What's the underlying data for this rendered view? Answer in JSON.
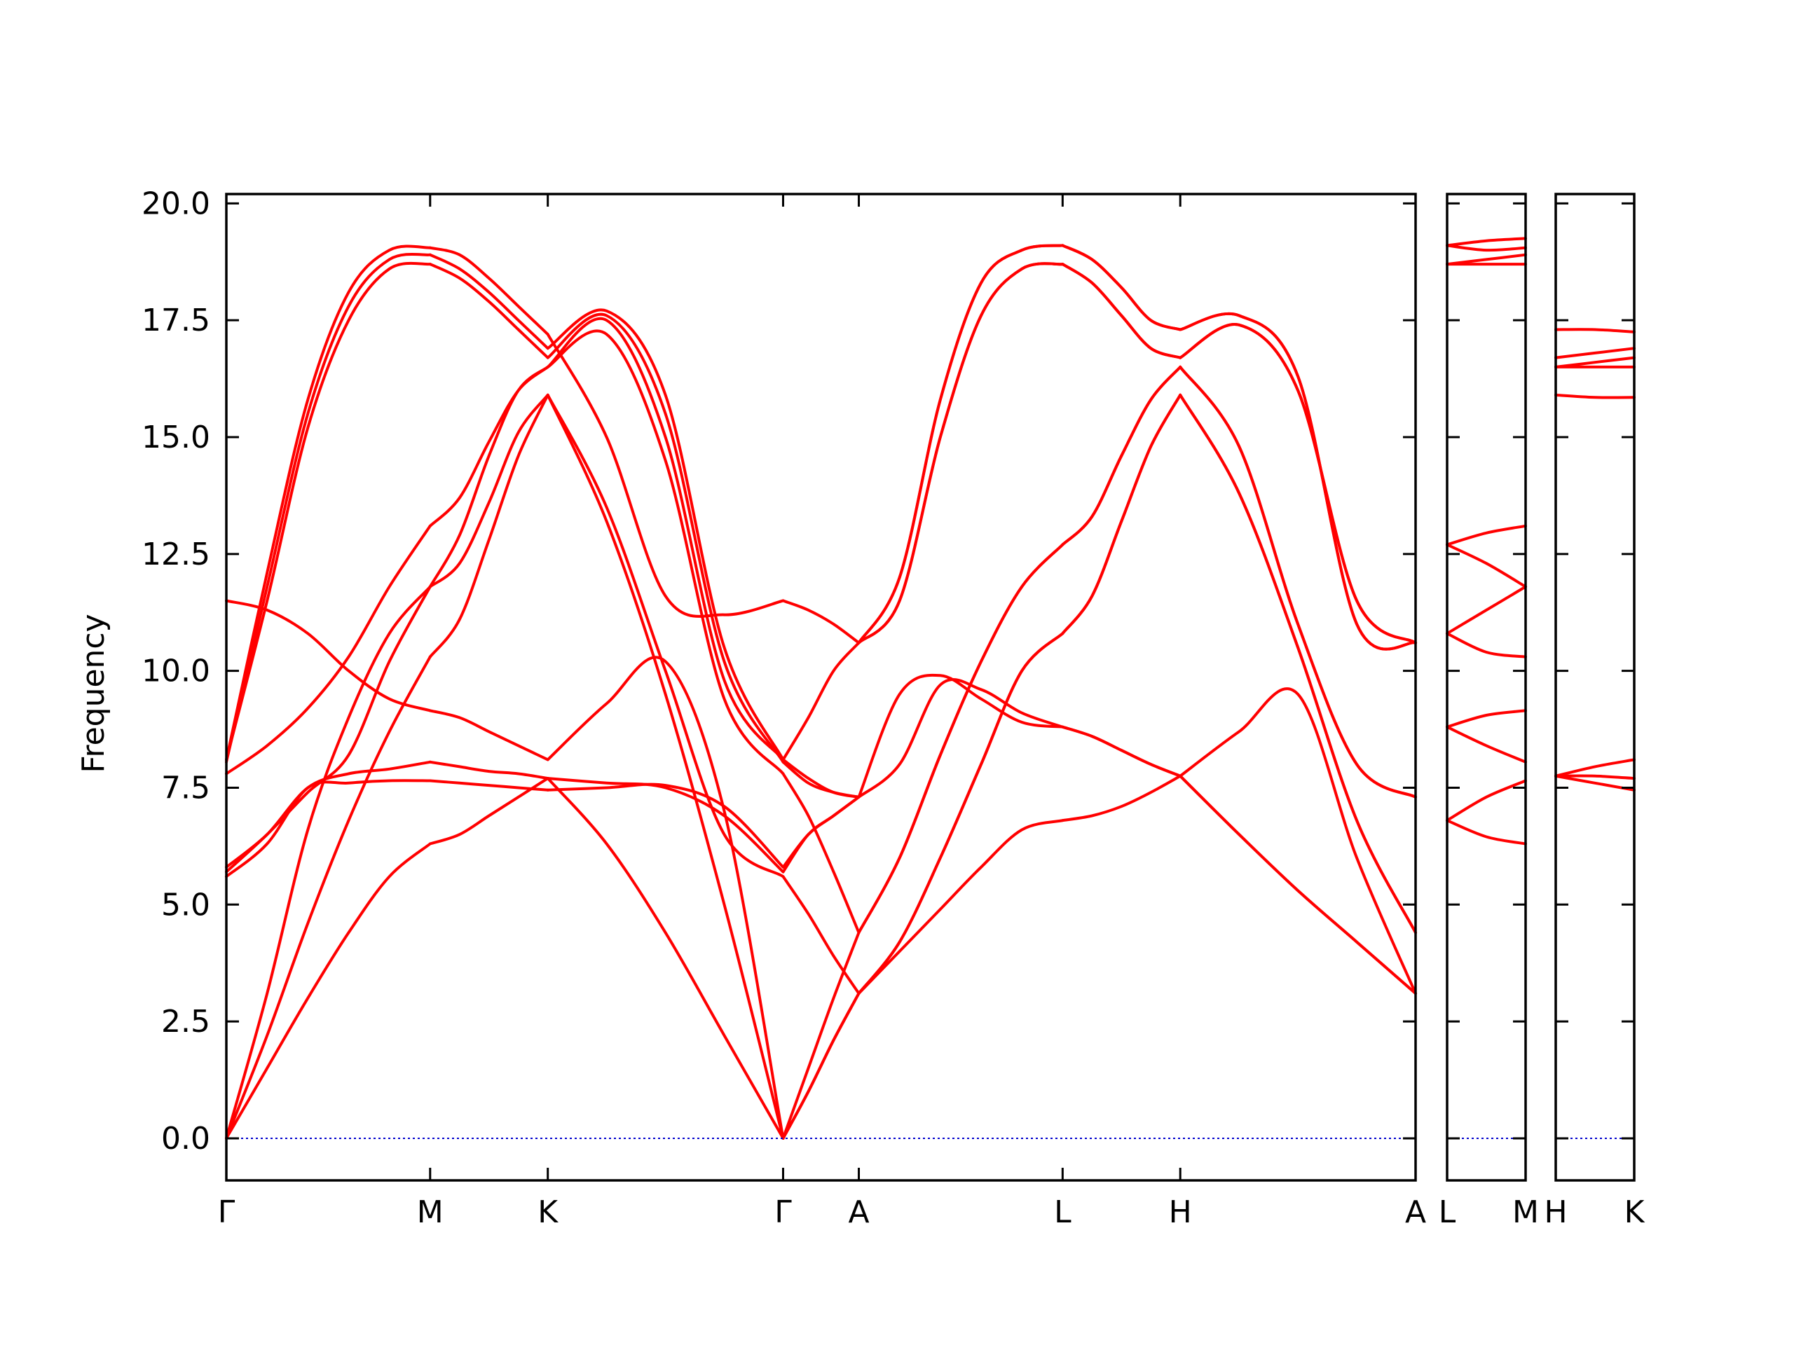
{
  "chart_data": {
    "type": "line",
    "ylabel": "Frequency",
    "ylim": [
      -0.9,
      20.2
    ],
    "yticks": [
      "0.0",
      "2.5",
      "5.0",
      "7.5",
      "10.0",
      "12.5",
      "15.0",
      "17.5",
      "20.0"
    ],
    "ytick_values": [
      0,
      2.5,
      5,
      7.5,
      10,
      12.5,
      15,
      17.5,
      20
    ],
    "grid": false,
    "colors": {
      "bands": "#ff0000",
      "zero_line": "#0000cc",
      "frame": "#000000"
    },
    "high_symmetry_points": [
      {
        "label": "Γ",
        "x": 0.0
      },
      {
        "label": "M",
        "x": 0.627
      },
      {
        "label": "K",
        "x": 0.989
      },
      {
        "label": "Γ",
        "x": 1.713
      },
      {
        "label": "A",
        "x": 1.946
      },
      {
        "label": "L",
        "x": 2.573
      },
      {
        "label": "H",
        "x": 2.935
      },
      {
        "label": "A",
        "x": 3.659
      },
      {
        "label": "L",
        "x": 3.776
      },
      {
        "label": "M",
        "x": 4.009
      },
      {
        "label": "H",
        "x": 4.126
      },
      {
        "label": "K",
        "x": 4.359
      }
    ],
    "panels": [
      {
        "name": "Γ-M-K-Γ-A-L-H-A",
        "x_range": [
          0.0,
          3.659
        ],
        "segments": [
          {
            "from": "Γ",
            "to": "M",
            "x": [
              0.0,
              0.627
            ],
            "bands": [
              [
                0.0,
                1.5,
                3.0,
                4.4,
                5.6,
                6.3
              ],
              [
                0.0,
                2.2,
                4.6,
                6.8,
                8.7,
                10.3
              ],
              [
                0.0,
                3.1,
                6.6,
                9.0,
                10.8,
                11.8
              ],
              [
                5.6,
                6.3,
                7.5,
                7.6,
                7.65,
                7.65
              ],
              [
                5.7,
                6.5,
                7.4,
                8.2,
                10.2,
                11.8
              ],
              [
                5.8,
                6.5,
                7.5,
                7.8,
                7.9,
                8.05
              ],
              [
                7.8,
                8.4,
                9.2,
                10.3,
                11.8,
                13.1
              ],
              [
                8.1,
                11.5,
                15.2,
                17.5,
                18.6,
                18.7
              ],
              [
                8.05,
                11.8,
                15.5,
                17.8,
                18.8,
                18.9
              ],
              [
                8.1,
                12.1,
                15.8,
                18.1,
                19.0,
                19.05
              ],
              [
                11.5,
                11.3,
                10.8,
                10.0,
                9.4,
                9.15
              ]
            ]
          },
          {
            "from": "M",
            "to": "K",
            "x": [
              0.627,
              0.989
            ],
            "bands": [
              [
                6.3,
                6.5,
                6.9,
                7.3,
                7.7
              ],
              [
                10.3,
                11.1,
                12.8,
                14.6,
                15.9
              ],
              [
                11.8,
                12.3,
                13.6,
                15.1,
                15.9
              ],
              [
                7.65,
                7.6,
                7.55,
                7.5,
                7.45
              ],
              [
                11.8,
                12.9,
                14.6,
                16.0,
                16.5
              ],
              [
                8.05,
                7.95,
                7.85,
                7.8,
                7.7
              ],
              [
                13.1,
                13.7,
                14.9,
                16.0,
                16.5
              ],
              [
                18.7,
                18.4,
                17.9,
                17.3,
                16.7
              ],
              [
                18.9,
                18.6,
                18.1,
                17.5,
                16.9
              ],
              [
                19.05,
                18.9,
                18.4,
                17.8,
                17.2
              ],
              [
                9.15,
                9.0,
                8.7,
                8.4,
                8.1
              ]
            ]
          },
          {
            "from": "K",
            "to": "Γ",
            "x": [
              0.989,
              1.713
            ],
            "bands": [
              [
                7.7,
                6.3,
                4.4,
                2.2,
                0.0
              ],
              [
                15.9,
                13.2,
                9.5,
                5.0,
                0.0
              ],
              [
                15.9,
                13.5,
                10.0,
                6.5,
                5.6
              ],
              [
                7.45,
                7.5,
                7.55,
                7.1,
                5.8
              ],
              [
                16.5,
                17.2,
                14.5,
                9.4,
                7.8
              ],
              [
                7.7,
                7.6,
                7.5,
                6.9,
                5.7
              ],
              [
                16.5,
                17.5,
                15.0,
                9.8,
                8.1
              ],
              [
                16.7,
                17.6,
                15.5,
                10.2,
                8.05
              ],
              [
                16.9,
                17.7,
                15.9,
                10.5,
                8.1
              ],
              [
                17.2,
                15.0,
                11.6,
                11.2,
                11.5
              ],
              [
                8.1,
                9.3,
                10.2,
                7.0,
                0.0
              ]
            ]
          },
          {
            "from": "Γ",
            "to": "A",
            "x": [
              1.713,
              1.946
            ],
            "bands": [
              [
                0.0,
                1.0,
                2.1,
                3.1
              ],
              [
                0.0,
                1.0,
                2.1,
                3.1
              ],
              [
                5.6,
                4.8,
                3.9,
                3.1
              ],
              [
                5.8,
                6.5,
                6.9,
                7.3
              ],
              [
                7.8,
                6.9,
                5.7,
                4.4
              ],
              [
                5.7,
                6.5,
                6.9,
                7.3
              ],
              [
                8.1,
                9.0,
                10.0,
                10.6
              ],
              [
                8.05,
                7.6,
                7.4,
                7.3
              ],
              [
                8.1,
                7.7,
                7.4,
                7.3
              ],
              [
                11.5,
                11.3,
                11.0,
                10.6
              ],
              [
                0.0,
                1.5,
                3.0,
                4.4
              ]
            ]
          },
          {
            "from": "A",
            "to": "L",
            "x": [
              1.946,
              2.573
            ],
            "bands": [
              [
                3.1,
                4.0,
                4.9,
                5.8,
                6.6,
                6.8
              ],
              [
                3.1,
                4.2,
                6.0,
                8.0,
                10.0,
                10.8
              ],
              [
                4.4,
                6.0,
                8.2,
                10.2,
                11.8,
                12.7
              ],
              [
                7.3,
                9.5,
                9.9,
                9.4,
                8.9,
                8.8
              ],
              [
                10.6,
                11.5,
                15.0,
                17.6,
                18.6,
                18.7
              ],
              [
                10.6,
                12.0,
                15.8,
                18.3,
                19.0,
                19.1
              ],
              [
                7.3,
                8.0,
                9.7,
                9.6,
                9.1,
                8.8
              ],
              [
                4.4,
                6.0,
                8.2,
                10.2,
                11.8,
                12.7
              ],
              [
                3.1,
                4.2,
                6.0,
                8.0,
                10.0,
                10.8
              ],
              [
                10.6,
                11.5,
                15.0,
                17.6,
                18.6,
                18.7
              ],
              [
                10.6,
                12.0,
                15.8,
                18.3,
                19.0,
                19.1
              ]
            ]
          },
          {
            "from": "L",
            "to": "H",
            "x": [
              2.573,
              2.935
            ],
            "bands": [
              [
                6.8,
                6.9,
                7.1,
                7.4,
                7.75
              ],
              [
                10.8,
                11.6,
                13.2,
                14.8,
                15.9
              ],
              [
                12.7,
                13.3,
                14.6,
                15.8,
                16.5
              ],
              [
                8.8,
                8.6,
                8.3,
                8.0,
                7.75
              ],
              [
                18.7,
                18.3,
                17.6,
                16.9,
                16.7
              ],
              [
                19.1,
                18.8,
                18.2,
                17.5,
                17.3
              ],
              [
                8.8,
                8.6,
                8.3,
                8.0,
                7.75
              ],
              [
                12.7,
                13.3,
                14.6,
                15.8,
                16.5
              ],
              [
                10.8,
                11.6,
                13.2,
                14.8,
                15.9
              ],
              [
                18.7,
                18.3,
                17.6,
                16.9,
                16.7
              ],
              [
                19.1,
                18.8,
                18.2,
                17.5,
                17.3
              ]
            ]
          },
          {
            "from": "H",
            "to": "A",
            "x": [
              2.935,
              3.659
            ],
            "bands": [
              [
                7.75,
                8.7,
                9.5,
                6.0,
                3.1
              ],
              [
                15.9,
                13.8,
                10.5,
                6.8,
                4.4
              ],
              [
                16.5,
                14.8,
                11.0,
                8.0,
                7.3
              ],
              [
                7.75,
                6.5,
                5.3,
                4.2,
                3.1
              ],
              [
                16.7,
                17.4,
                16.0,
                11.5,
                10.6
              ],
              [
                17.3,
                17.6,
                16.3,
                11.0,
                10.6
              ],
              [
                7.75,
                6.5,
                5.3,
                4.2,
                3.1
              ],
              [
                16.5,
                14.8,
                11.0,
                8.0,
                7.3
              ],
              [
                15.9,
                13.8,
                10.5,
                6.8,
                4.4
              ],
              [
                16.7,
                17.4,
                16.0,
                11.5,
                10.6
              ],
              [
                17.3,
                17.6,
                16.3,
                11.0,
                10.6
              ]
            ]
          }
        ]
      },
      {
        "name": "L-M",
        "x_range": [
          3.776,
          4.009
        ],
        "segments": [
          {
            "from": "L",
            "to": "M",
            "x": [
              3.776,
              4.009
            ],
            "bands": [
              [
                6.8,
                6.45,
                6.3
              ],
              [
                6.8,
                7.3,
                7.65
              ],
              [
                8.8,
                9.05,
                9.15
              ],
              [
                8.8,
                8.4,
                8.05
              ],
              [
                10.8,
                10.4,
                10.3
              ],
              [
                10.8,
                11.3,
                11.8
              ],
              [
                12.7,
                12.95,
                13.1
              ],
              [
                12.7,
                12.3,
                11.8
              ],
              [
                18.7,
                18.7,
                18.7
              ],
              [
                18.7,
                18.8,
                18.9
              ],
              [
                19.1,
                19.0,
                19.05
              ],
              [
                19.1,
                19.2,
                19.25
              ]
            ]
          }
        ]
      },
      {
        "name": "H-K",
        "x_range": [
          4.126,
          4.359
        ],
        "segments": [
          {
            "from": "H",
            "to": "K",
            "x": [
              4.126,
              4.359
            ],
            "bands": [
              [
                7.75,
                7.6,
                7.45
              ],
              [
                7.75,
                7.75,
                7.7
              ],
              [
                7.75,
                7.95,
                8.1
              ],
              [
                15.9,
                15.85,
                15.85
              ],
              [
                16.5,
                16.5,
                16.5
              ],
              [
                16.5,
                16.6,
                16.7
              ],
              [
                16.7,
                16.8,
                16.9
              ],
              [
                17.3,
                17.3,
                17.25
              ]
            ]
          }
        ]
      }
    ]
  }
}
